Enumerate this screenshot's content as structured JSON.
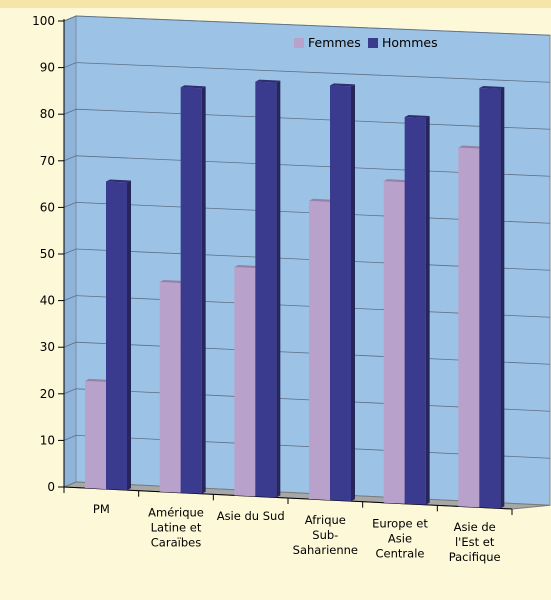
{
  "chart_data": {
    "type": "bar",
    "title": "",
    "xlabel": "",
    "ylabel": "",
    "ylim": [
      0,
      100
    ],
    "yticks": [
      0,
      10,
      20,
      30,
      40,
      50,
      60,
      70,
      80,
      90,
      100
    ],
    "grid": true,
    "legend_position": "top-right",
    "categories": [
      [
        "PM"
      ],
      [
        "Amérique",
        "Latine et",
        "Caraïbes"
      ],
      [
        "Asie du Sud"
      ],
      [
        "Afrique",
        "Sub-",
        "Saharienne"
      ],
      [
        "Europe et",
        "Asie",
        "Centrale"
      ],
      [
        "Asie de",
        "l'Est et",
        "Pacifique"
      ]
    ],
    "series": [
      {
        "name": "Femmes",
        "values": [
          23,
          45,
          49,
          64,
          69,
          77
        ]
      },
      {
        "name": "Hommes",
        "values": [
          66,
          87,
          89,
          89,
          83,
          90
        ]
      }
    ],
    "colors": {
      "Femmes": "#b8a2cc",
      "Hommes": "#3a3a8e",
      "plot_background": "#9cc3e6",
      "page_background": "#fdf8d8"
    }
  }
}
